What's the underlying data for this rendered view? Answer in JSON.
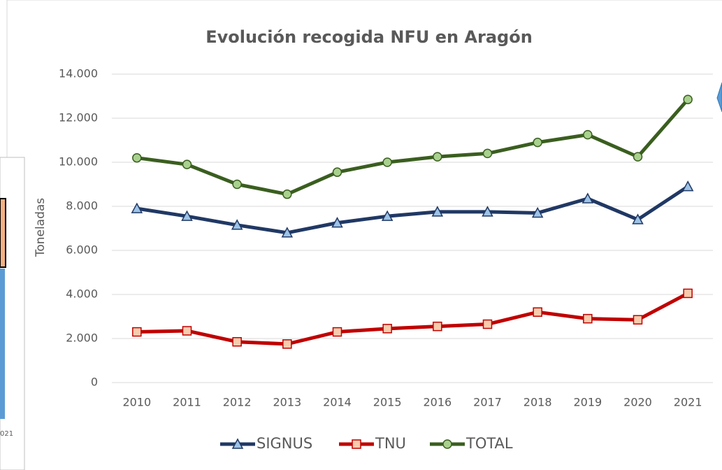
{
  "chart_data": {
    "type": "line",
    "title": "Evolución recogida NFU en Aragón",
    "y_label": "Toneladas",
    "categories": [
      "2010",
      "2011",
      "2012",
      "2013",
      "2014",
      "2015",
      "2016",
      "2017",
      "2018",
      "2019",
      "2020",
      "2021"
    ],
    "series": [
      {
        "name": "SIGNUS",
        "color": "#203864",
        "marker": "triangle",
        "marker_fill": "#9dc3e6",
        "values": [
          7900,
          7550,
          7150,
          6800,
          7250,
          7550,
          7750,
          7750,
          7700,
          8350,
          7400,
          8900
        ]
      },
      {
        "name": "TNU",
        "color": "#c00000",
        "marker": "square",
        "marker_fill": "#f8cbad",
        "values": [
          2300,
          2350,
          1850,
          1750,
          2300,
          2450,
          2550,
          2650,
          3200,
          2900,
          2850,
          4050
        ]
      },
      {
        "name": "TOTAL",
        "color": "#3a5e1f",
        "marker": "circle",
        "marker_fill": "#a9d18e",
        "values": [
          10200,
          9900,
          9000,
          8550,
          9550,
          10000,
          10250,
          10400,
          10900,
          11250,
          10250,
          12850
        ]
      }
    ],
    "ylim": [
      0,
      14000
    ],
    "yticks": [
      0,
      {
        "value": 2000,
        "label": "2.000"
      },
      {
        "value": 4000,
        "label": "4.000"
      },
      {
        "value": 6000,
        "label": "6.000"
      },
      {
        "value": 8000,
        "label": "8.000"
      },
      {
        "value": 10000,
        "label": "10.000"
      },
      {
        "value": 12000,
        "label": "12.000"
      },
      {
        "value": 14000,
        "label": "14.000"
      }
    ],
    "grid": true,
    "legend": "bottom"
  },
  "fragment_label": "021"
}
